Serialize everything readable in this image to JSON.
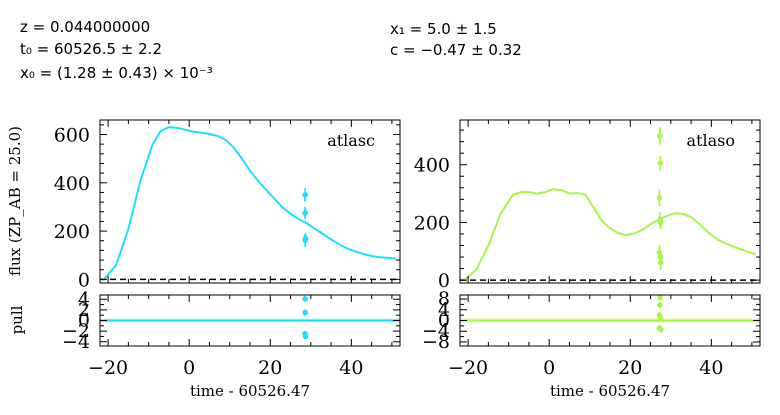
{
  "params": {
    "z": "z = 0.044000000",
    "t0": "t₀ = 60526.5 ± 2.2",
    "x0": "x₀ = (1.28 ± 0.43) × 10⁻³",
    "x1": "x₁ = 5.0 ± 1.5",
    "c": "c = −0.47 ± 0.32"
  },
  "chart_data": [
    {
      "type": "line",
      "band": "atlasc",
      "color": "#19e0ff",
      "ylabel": "flux (ZP_AB = 25.0)",
      "xlim": [
        -22,
        52
      ],
      "ylim": [
        -15,
        660
      ],
      "yticks": [
        0,
        200,
        400,
        600
      ],
      "model": {
        "x": [
          -21,
          -18,
          -15,
          -12,
          -9,
          -7,
          -5,
          -3,
          -1,
          1,
          3,
          5,
          7,
          9,
          11,
          13,
          15,
          17,
          19,
          21,
          23,
          25,
          27,
          29,
          31,
          33,
          35,
          37,
          39,
          41,
          43,
          45,
          47,
          49,
          51
        ],
        "y": [
          0,
          60,
          210,
          410,
          560,
          615,
          630,
          628,
          620,
          612,
          608,
          602,
          594,
          578,
          545,
          500,
          450,
          408,
          370,
          335,
          298,
          272,
          250,
          232,
          210,
          188,
          166,
          145,
          128,
          115,
          105,
          97,
          92,
          89,
          86
        ]
      },
      "points": [
        {
          "x": 28.6,
          "y": 350,
          "err": 28
        },
        {
          "x": 28.6,
          "y": 275,
          "err": 25
        },
        {
          "x": 28.6,
          "y": 162,
          "err": 28
        },
        {
          "x": 28.7,
          "y": 170,
          "err": 20
        }
      ],
      "pull": {
        "ylim": [
          -4.8,
          4.8
        ],
        "yticks": [
          -4,
          -2,
          0,
          2,
          4
        ],
        "band_halfwidth": 0.35,
        "points": [
          {
            "x": 28.6,
            "y": 4.1
          },
          {
            "x": 28.6,
            "y": 1.5
          },
          {
            "x": 28.6,
            "y": -2.5
          },
          {
            "x": 28.7,
            "y": -3.0
          }
        ]
      }
    },
    {
      "type": "line",
      "band": "atlaso",
      "color": "#a6f54a",
      "xlim": [
        -22,
        52
      ],
      "ylim": [
        -10,
        555
      ],
      "yticks": [
        0,
        200,
        400
      ],
      "model": {
        "x": [
          -21,
          -18,
          -15,
          -12,
          -9,
          -7,
          -5,
          -3,
          -1,
          1,
          3,
          5,
          7,
          9,
          11,
          13,
          15,
          17,
          19,
          21,
          23,
          25,
          27,
          29,
          31,
          33,
          35,
          37,
          39,
          41,
          43,
          45,
          47,
          49,
          51
        ],
        "y": [
          0,
          35,
          120,
          230,
          295,
          305,
          305,
          300,
          305,
          315,
          312,
          300,
          302,
          295,
          250,
          205,
          180,
          163,
          156,
          162,
          175,
          193,
          210,
          222,
          232,
          230,
          218,
          195,
          168,
          145,
          130,
          118,
          108,
          98,
          90
        ]
      },
      "points": [
        {
          "x": 27.3,
          "y": 500,
          "err": 30
        },
        {
          "x": 27.4,
          "y": 405,
          "err": 25
        },
        {
          "x": 27.2,
          "y": 285,
          "err": 28
        },
        {
          "x": 27.3,
          "y": 210,
          "err": 25
        },
        {
          "x": 27.5,
          "y": 200,
          "err": 22
        },
        {
          "x": 27.2,
          "y": 95,
          "err": 25
        },
        {
          "x": 27.4,
          "y": 80,
          "err": 22
        },
        {
          "x": 27.5,
          "y": 60,
          "err": 25
        }
      ],
      "pull": {
        "ylim": [
          -9.5,
          9.5
        ],
        "yticks": [
          -8,
          -4,
          0,
          4,
          8
        ],
        "band_halfwidth": 0.8,
        "points": [
          {
            "x": 27.4,
            "y": 8.5
          },
          {
            "x": 27.3,
            "y": 5.8
          },
          {
            "x": 27.2,
            "y": 2.0
          },
          {
            "x": 27.5,
            "y": 0.8
          },
          {
            "x": 27.2,
            "y": -2.8
          },
          {
            "x": 27.5,
            "y": -3.3
          }
        ]
      }
    }
  ],
  "xticks": [
    -20,
    0,
    20,
    40
  ],
  "xlabel": "time - 60526.47",
  "pull_label": "pull"
}
